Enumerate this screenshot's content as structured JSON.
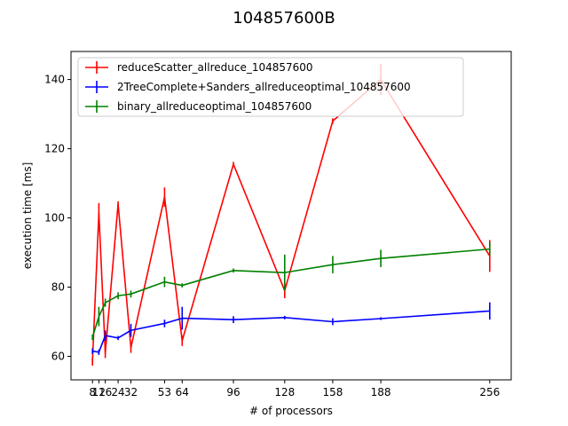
{
  "chart_data": {
    "type": "line",
    "title": "104857600B",
    "xlabel": "# of processors",
    "ylabel": "execution time [ms]",
    "xlim": [
      -5.4,
      269.4
    ],
    "ylim": [
      53.2,
      148.1
    ],
    "xticks": [
      8,
      12,
      16,
      24,
      32,
      53,
      64,
      96,
      128,
      158,
      188,
      256
    ],
    "xtick_labels": [
      "8",
      "12",
      "16",
      "24",
      "32",
      "53",
      "64",
      "96",
      "128",
      "158",
      "188",
      "256"
    ],
    "yticks": [
      60,
      80,
      100,
      120,
      140
    ],
    "grid": false,
    "legend_position": "upper-left",
    "series": [
      {
        "name": "reduceScatter_allreduce_104857600",
        "color": "#ff0000",
        "x": [
          8,
          12,
          16,
          24,
          32,
          53,
          64,
          96,
          128,
          158,
          188,
          256
        ],
        "y": [
          58.5,
          101.5,
          61,
          104,
          62.5,
          106,
          64.5,
          115.5,
          79,
          128,
          140,
          89
        ],
        "error": [
          1.2,
          2.8,
          1.5,
          0.8,
          1.5,
          2.8,
          1.5,
          0.7,
          2.2,
          0.8,
          4.5,
          4.6
        ]
      },
      {
        "name": "2TreeComplete+Sanders_allreduceoptimal_104857600",
        "color": "#0000ff",
        "x": [
          8,
          12,
          16,
          24,
          32,
          53,
          64,
          96,
          128,
          158,
          188,
          256
        ],
        "y": [
          61.5,
          61.2,
          66,
          65.3,
          67.5,
          69.5,
          71,
          70.6,
          71.2,
          70,
          70.9,
          73.1
        ],
        "error": [
          0.8,
          0.8,
          1.5,
          0.6,
          1.9,
          1.1,
          3.3,
          1.0,
          0.5,
          1.0,
          0.4,
          2.5
        ]
      },
      {
        "name": "binary_allreduceoptimal_104857600",
        "color": "#008000",
        "x": [
          8,
          12,
          16,
          24,
          32,
          53,
          64,
          96,
          128,
          158,
          188,
          256
        ],
        "y": [
          65.5,
          71.5,
          75.5,
          77.5,
          78,
          81.5,
          80.5,
          84.8,
          84.2,
          86.5,
          88.3,
          91
        ],
        "error": [
          0.8,
          2.8,
          1.2,
          1.0,
          1.0,
          1.5,
          0.6,
          0.6,
          5.2,
          2.5,
          2.5,
          2.0
        ]
      }
    ]
  }
}
